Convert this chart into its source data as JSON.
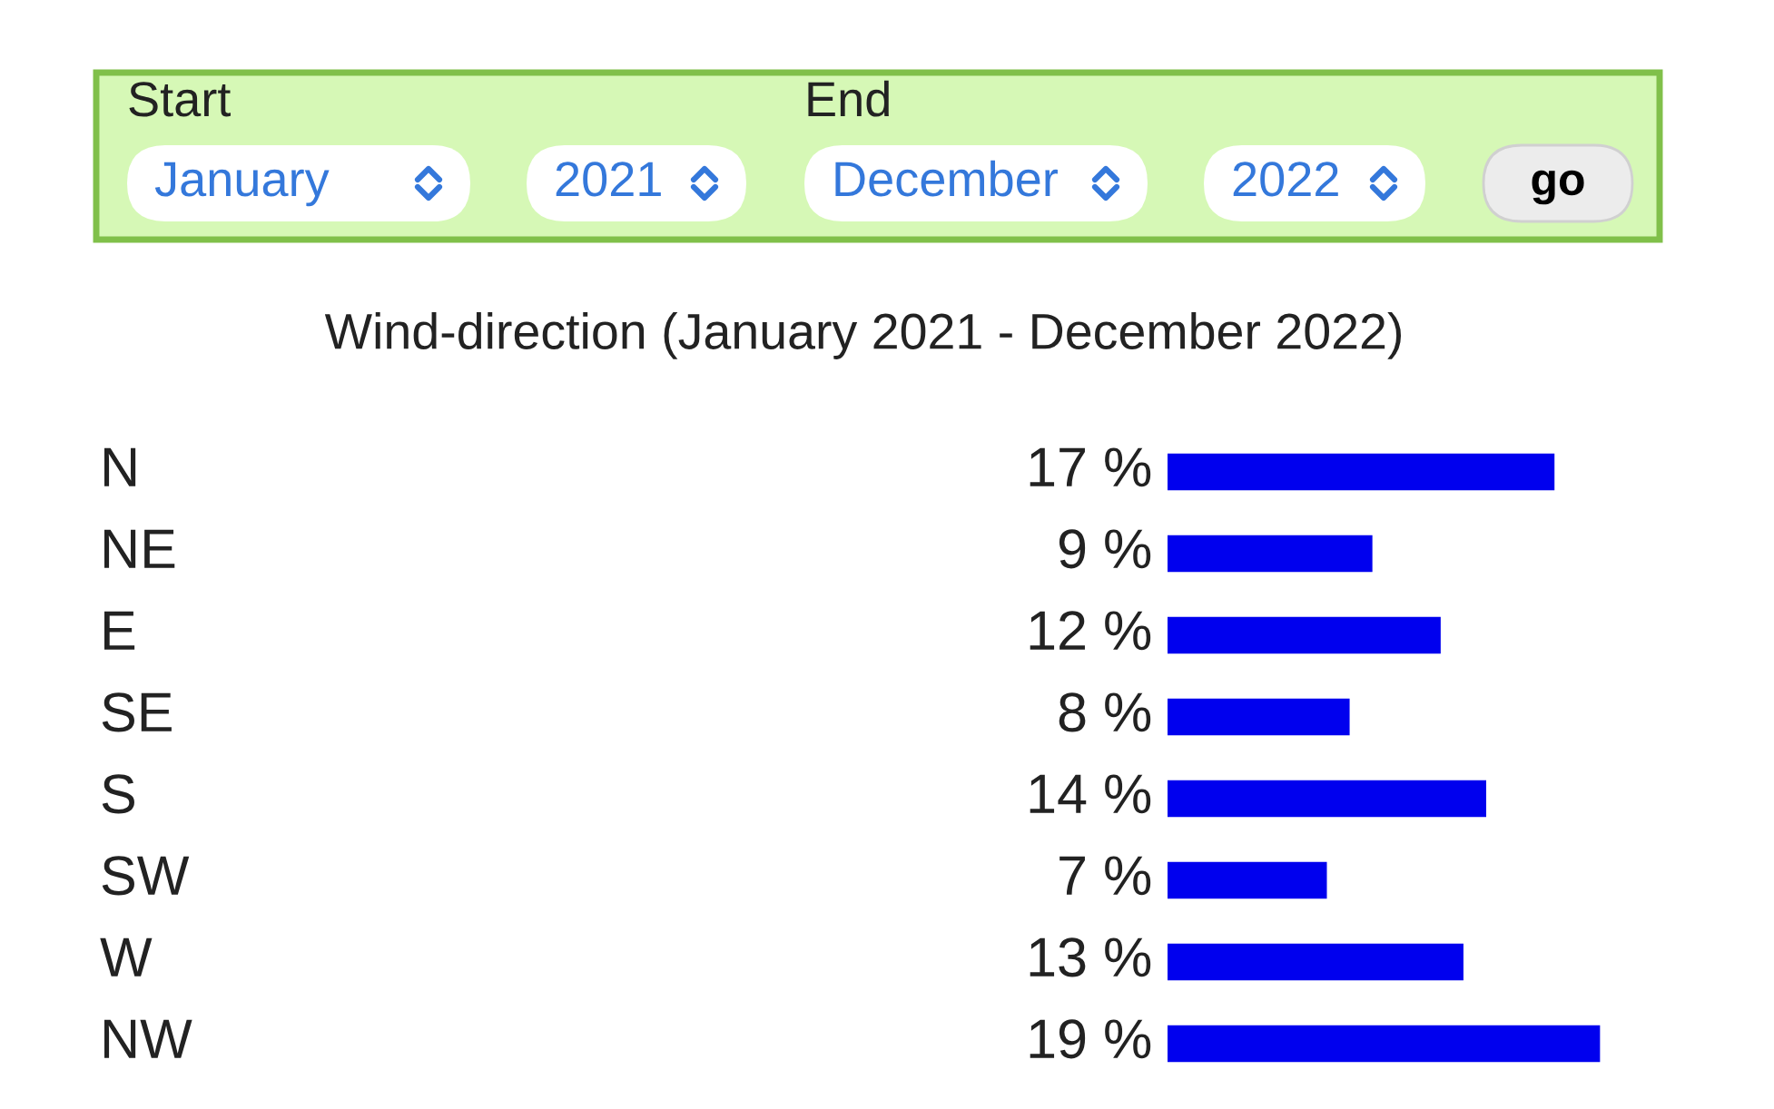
{
  "chart_data": [
    {
      "type": "other",
      "annotations": [
        "Start",
        "End",
        "January",
        "2021",
        "December",
        "2022",
        "go"
      ]
    },
    {
      "type": "bar",
      "orientation": "horizontal",
      "title": "Wind-direction (January 2021 - December 2022)",
      "categories": [
        "N",
        "NE",
        "E",
        "SE",
        "S",
        "SW",
        "W",
        "NW"
      ],
      "values": [
        17,
        9,
        12,
        8,
        14,
        7,
        13,
        19
      ],
      "color": "#0000ee",
      "value_labels": [
        "17 %",
        "9 %",
        "12 %",
        "8 %",
        "14 %",
        "7 %",
        "13 %",
        "19 %"
      ]
    }
  ]
}
